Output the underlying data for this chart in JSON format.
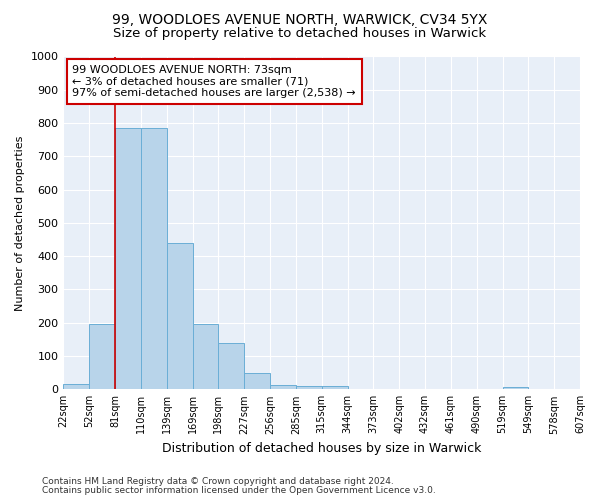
{
  "title1": "99, WOODLOES AVENUE NORTH, WARWICK, CV34 5YX",
  "title2": "Size of property relative to detached houses in Warwick",
  "xlabel": "Distribution of detached houses by size in Warwick",
  "ylabel": "Number of detached properties",
  "footer1": "Contains HM Land Registry data © Crown copyright and database right 2024.",
  "footer2": "Contains public sector information licensed under the Open Government Licence v3.0.",
  "annotation_line1": "99 WOODLOES AVENUE NORTH: 73sqm",
  "annotation_line2": "← 3% of detached houses are smaller (71)",
  "annotation_line3": "97% of semi-detached houses are larger (2,538) →",
  "bar_values": [
    15,
    195,
    785,
    785,
    440,
    195,
    140,
    48,
    12,
    10,
    10,
    0,
    0,
    0,
    0,
    0,
    0,
    8,
    0,
    0
  ],
  "bar_labels": [
    "22sqm",
    "52sqm",
    "81sqm",
    "110sqm",
    "139sqm",
    "169sqm",
    "198sqm",
    "227sqm",
    "256sqm",
    "285sqm",
    "315sqm",
    "344sqm",
    "373sqm",
    "402sqm",
    "432sqm",
    "461sqm",
    "490sqm",
    "519sqm",
    "549sqm",
    "578sqm",
    "607sqm"
  ],
  "bar_color": "#b8d4ea",
  "bar_edge_color": "#6aaed6",
  "vline_x": 2,
  "vline_color": "#cc0000",
  "annotation_box_color": "#cc0000",
  "ylim": [
    0,
    1000
  ],
  "yticks": [
    0,
    100,
    200,
    300,
    400,
    500,
    600,
    700,
    800,
    900,
    1000
  ],
  "bg_color": "#e8eff8",
  "grid_color": "#ffffff",
  "title1_fontsize": 10,
  "title2_fontsize": 9.5,
  "ylabel_fontsize": 8,
  "xlabel_fontsize": 9
}
